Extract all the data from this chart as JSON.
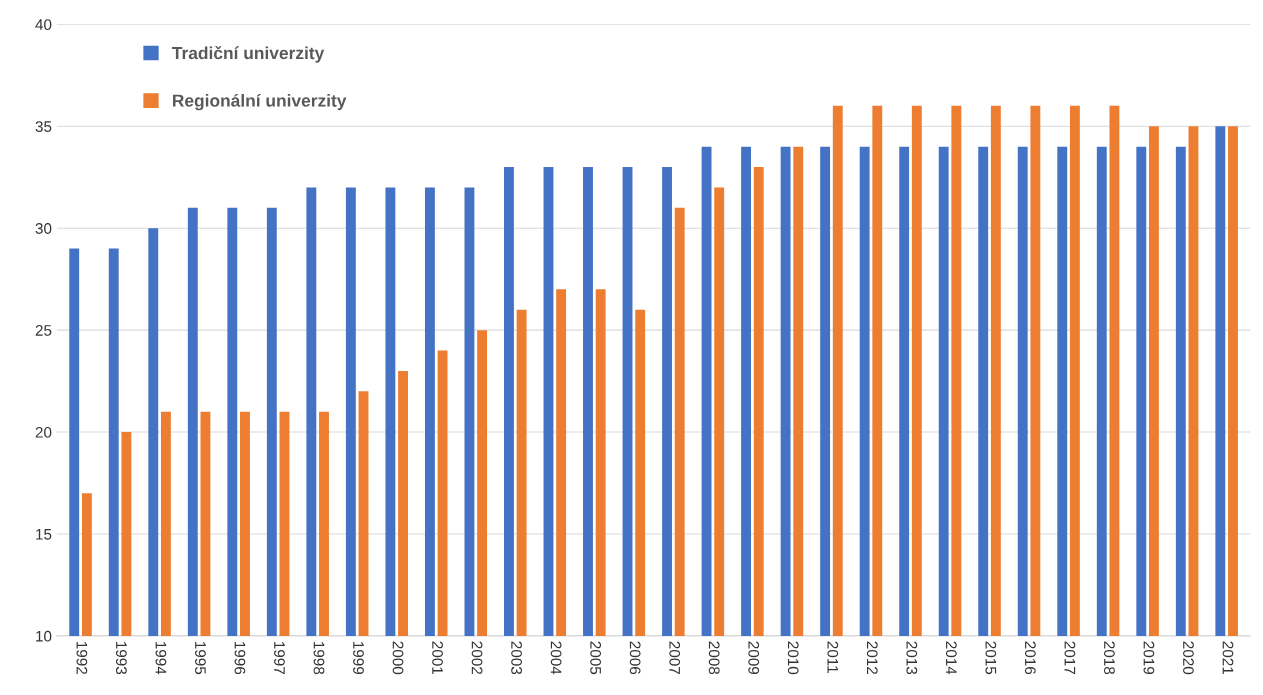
{
  "chart_data": {
    "type": "bar",
    "categories": [
      "1992",
      "1993",
      "1994",
      "1995",
      "1996",
      "1997",
      "1998",
      "1999",
      "2000",
      "2001",
      "2002",
      "2003",
      "2004",
      "2005",
      "2006",
      "2007",
      "2008",
      "2009",
      "2010",
      "2011",
      "2012",
      "2013",
      "2014",
      "2015",
      "2016",
      "2017",
      "2018",
      "2019",
      "2020",
      "2021"
    ],
    "series": [
      {
        "name": "Tradiční univerzity",
        "color": "#4472c4",
        "values": [
          29,
          29,
          30,
          31,
          31,
          31,
          32,
          32,
          32,
          32,
          32,
          33,
          33,
          33,
          33,
          33,
          34,
          34,
          34,
          34,
          34,
          34,
          34,
          34,
          34,
          34,
          34,
          34,
          34,
          35
        ]
      },
      {
        "name": "Regionální univerzity",
        "color": "#ed7d31",
        "values": [
          17,
          20,
          21,
          21,
          21,
          21,
          21,
          22,
          23,
          24,
          25,
          26,
          27,
          27,
          26,
          31,
          32,
          33,
          34,
          36,
          36,
          36,
          36,
          36,
          36,
          36,
          36,
          35,
          35,
          35
        ]
      }
    ],
    "ylim": [
      10,
      40
    ],
    "yticks": [
      10,
      15,
      20,
      25,
      30,
      35,
      40
    ],
    "grid": "y",
    "legend": "top left"
  }
}
